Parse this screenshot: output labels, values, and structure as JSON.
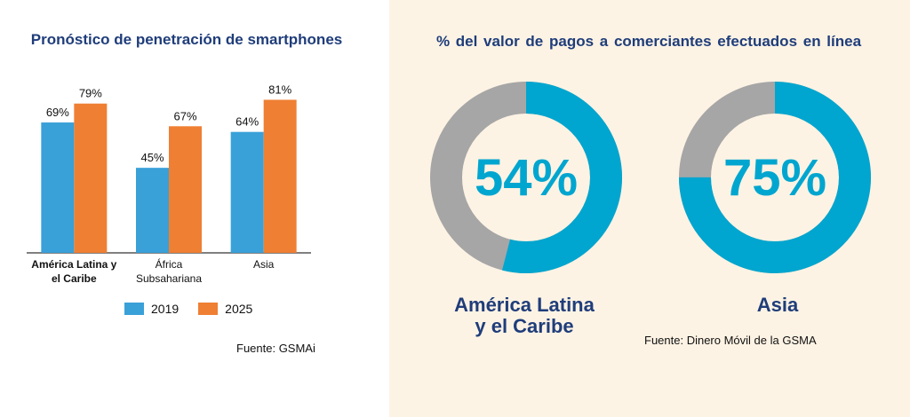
{
  "chart_data": [
    {
      "type": "bar",
      "title": "Pronóstico de penetración de smartphones",
      "categories": [
        "América Latina y el Caribe",
        "África Subsahariana",
        "Asia"
      ],
      "category_lines": [
        [
          "América Latina y",
          "el Caribe"
        ],
        [
          "África",
          "Subsahariana"
        ],
        [
          "Asia"
        ]
      ],
      "series": [
        {
          "name": "2019",
          "values": [
            69,
            45,
            64
          ],
          "labels": [
            "69%",
            "45%",
            "64%"
          ],
          "color": "#3aa0d8"
        },
        {
          "name": "2025",
          "values": [
            79,
            67,
            81
          ],
          "labels": [
            "79%",
            "67%",
            "81%"
          ],
          "color": "#ef7f33"
        }
      ],
      "ylim": [
        0,
        100
      ],
      "grid": false,
      "legend": "bottom",
      "source": "Fuente: GSMAi"
    },
    {
      "type": "pie",
      "subtype": "donut",
      "title": "% del valor de pagos a comerciantes efectuados en línea",
      "charts": [
        {
          "label": "América Latina y el Caribe",
          "label_lines": [
            "América Latina",
            "y el Caribe"
          ],
          "value": 54,
          "value_label": "54%"
        },
        {
          "label": "Asia",
          "label_lines": [
            "Asia"
          ],
          "value": 75,
          "value_label": "75%"
        }
      ],
      "colors": {
        "value": "#00a6cf",
        "rest": "#a6a6a6"
      },
      "source": "Fuente: Dinero Móvil de la GSMA"
    }
  ]
}
